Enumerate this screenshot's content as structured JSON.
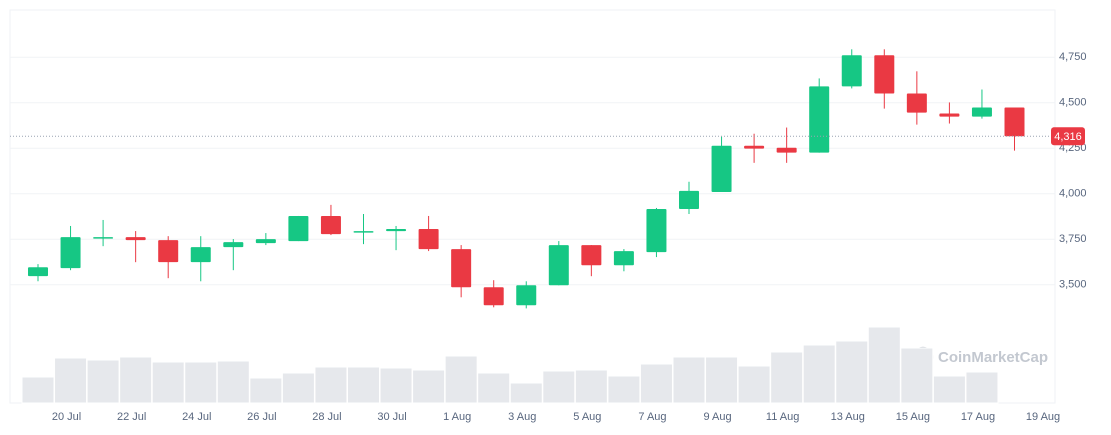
{
  "chart_data": {
    "type": "candlestick",
    "watermark": "CoinMarketCap",
    "categories": [
      null,
      "20 Jul",
      null,
      "22 Jul",
      null,
      "24 Jul",
      null,
      "26 Jul",
      null,
      "28 Jul",
      null,
      "30 Jul",
      null,
      "1 Aug",
      null,
      "3 Aug",
      null,
      "5 Aug",
      null,
      "7 Aug",
      null,
      "9 Aug",
      null,
      "11 Aug",
      null,
      "13 Aug",
      null,
      "15 Aug",
      null,
      "17 Aug",
      null,
      "19 Aug"
    ],
    "open": [
      3547,
      3591,
      3758,
      3762,
      3745,
      3624,
      3707,
      3729,
      3740,
      3878,
      3789,
      3795,
      3806,
      3696,
      3486,
      3387,
      3497,
      3718,
      3607,
      3679,
      3916,
      4010,
      4264,
      4253,
      4226,
      4590,
      4761,
      4551,
      4441,
      4424,
      4474,
      null
    ],
    "high": [
      3613,
      3823,
      3856,
      3795,
      3767,
      3767,
      3751,
      3784,
      3878,
      3939,
      3889,
      3823,
      3878,
      3718,
      3525,
      3519,
      3740,
      3718,
      3696,
      3922,
      4066,
      4314,
      4330,
      4364,
      4634,
      4794,
      4794,
      4673,
      4502,
      4573,
      4474,
      null
    ],
    "low": [
      3519,
      3580,
      3712,
      3624,
      3536,
      3519,
      3580,
      3718,
      3740,
      3773,
      3723,
      3690,
      3685,
      3431,
      3376,
      3370,
      3497,
      3547,
      3574,
      3652,
      3889,
      4010,
      4170,
      4170,
      4226,
      4579,
      4468,
      4380,
      4386,
      4413,
      4237,
      null
    ],
    "close": [
      3596,
      3762,
      3762,
      3745,
      3624,
      3707,
      3734,
      3751,
      3878,
      3778,
      3795,
      3806,
      3696,
      3486,
      3387,
      3497,
      3718,
      3607,
      3685,
      3916,
      4016,
      4264,
      4248,
      4226,
      4590,
      4761,
      4551,
      4446,
      4424,
      4474,
      4316,
      null
    ],
    "volume": [
      26,
      45,
      43,
      46,
      41,
      41,
      42,
      25,
      30,
      36,
      36,
      35,
      33,
      47,
      30,
      20,
      32,
      33,
      27,
      39,
      46,
      46,
      37,
      51,
      58,
      62,
      76,
      55,
      27,
      31,
      null,
      null
    ],
    "up_color": "#16c784",
    "down_color": "#ea3943",
    "volume_color": "#e6e8ec",
    "ylim": [
      2850,
      5010
    ],
    "yticks": [
      {
        "value": 3500,
        "label": "3,500"
      },
      {
        "value": 3750,
        "label": "3,750"
      },
      {
        "value": 4000,
        "label": "4,000"
      },
      {
        "value": 4250,
        "label": "4,250"
      },
      {
        "value": 4500,
        "label": "4,500"
      },
      {
        "value": 4750,
        "label": "4,750"
      }
    ],
    "grid": true,
    "last_price": {
      "value": 4316,
      "label": "4,316"
    }
  }
}
